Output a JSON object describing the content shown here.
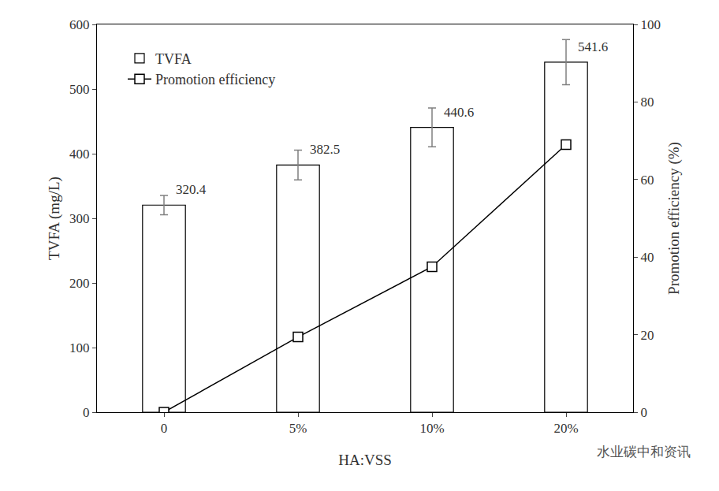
{
  "chart_data": {
    "type": "bar",
    "x_label": "HA:VSS",
    "y_label": "TVFA (mg/L)",
    "y2_label": "Promotion efficiency (%)",
    "categories": [
      "0",
      "5%",
      "10%",
      "20%"
    ],
    "series": [
      {
        "name": "TVFA",
        "type": "bar",
        "color": "#ffffff",
        "values": [
          320.4,
          382.5,
          440.6,
          541.6
        ],
        "errors": [
          15,
          23,
          30,
          35
        ],
        "data_labels": true
      },
      {
        "name": "Promotion efficiency",
        "type": "line",
        "axis": "y2",
        "color": "#000000",
        "marker": "square",
        "values": [
          0,
          19.4,
          37.5,
          69.0
        ]
      }
    ],
    "ylim": [
      0,
      600
    ],
    "yticks": [
      0,
      100,
      200,
      300,
      400,
      500,
      600
    ],
    "y2lim": [
      0,
      100
    ],
    "y2ticks": [
      0,
      20,
      40,
      60,
      80,
      100
    ],
    "grid": false,
    "legend": "top-left",
    "annotations": [
      "水业碳中和资讯"
    ]
  }
}
